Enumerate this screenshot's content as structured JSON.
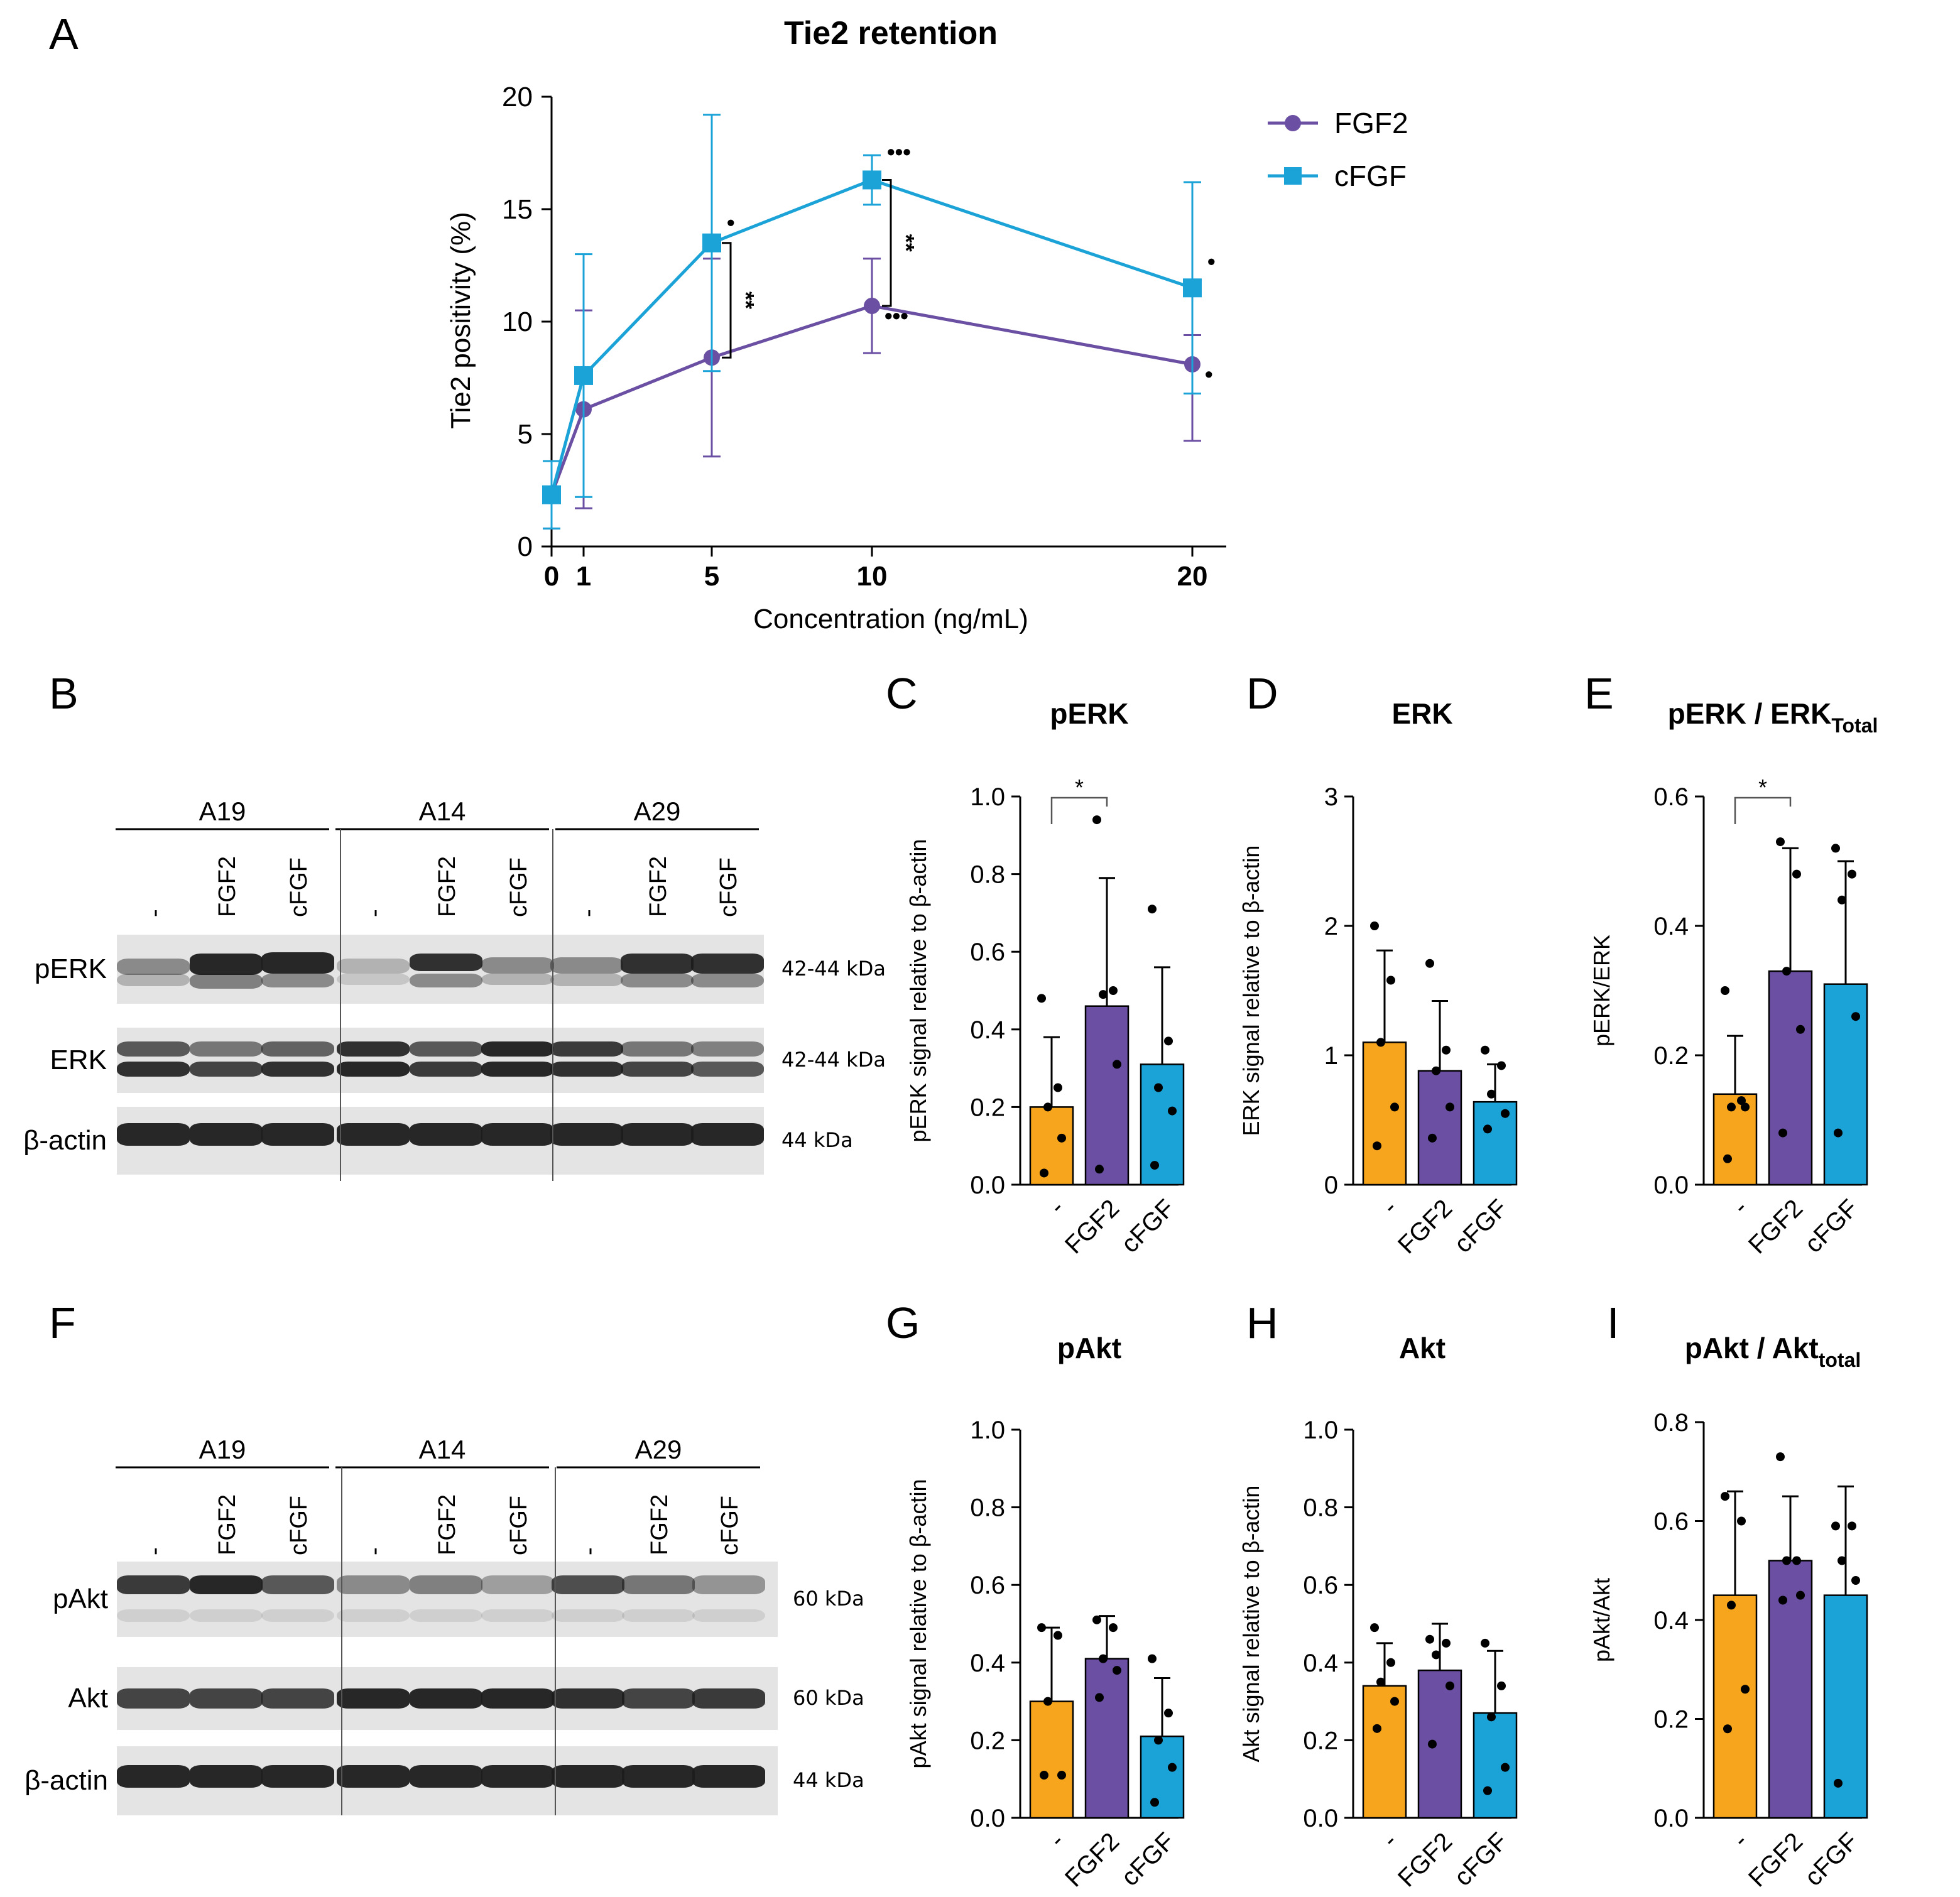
{
  "panel_letters": {
    "A": "A",
    "B": "B",
    "C": "C",
    "D": "D",
    "E": "E",
    "F": "F",
    "G": "G",
    "H": "H",
    "I": "I"
  },
  "colors": {
    "fgf2": "#6a4fa3",
    "cfgf": "#1ba3d8",
    "control": "#f7a51c",
    "blot_bg": "#dcdcdc",
    "band": "#1a1a1a"
  },
  "chart_data": [
    {
      "id": "A",
      "type": "line",
      "title": "Tie2 retention",
      "xlabel": "Concentration (ng/mL)",
      "ylabel": "Tie2 positivity (%)",
      "x": [
        0,
        1,
        5,
        10,
        20
      ],
      "xticks": [
        "0",
        "1",
        "5",
        "10",
        "20"
      ],
      "ylim": [
        0,
        20
      ],
      "yticks": [
        "0",
        "5",
        "10",
        "15",
        "20"
      ],
      "series": [
        {
          "name": "FGF2",
          "values": [
            2.3,
            6.1,
            8.4,
            10.7,
            8.1
          ],
          "err_hi": [
            1.5,
            4.4,
            4.4,
            2.1,
            1.3
          ],
          "err_lo": [
            1.5,
            4.4,
            4.4,
            2.1,
            3.4
          ]
        },
        {
          "name": "cFGF",
          "values": [
            2.3,
            7.6,
            13.5,
            16.3,
            11.5
          ],
          "err_hi": [
            1.5,
            5.4,
            5.7,
            1.1,
            4.7
          ],
          "err_lo": [
            1.5,
            5.4,
            5.7,
            1.1,
            4.7
          ]
        }
      ],
      "annotations": {
        "fgf2_marks": [
          "",
          "",
          "",
          "•••",
          "•"
        ],
        "cfgf_marks": [
          "",
          "",
          "•",
          "•••",
          "•"
        ],
        "brackets": [
          "**",
          "**"
        ]
      }
    },
    {
      "id": "C",
      "type": "bar",
      "title": "pERK",
      "ylabel": "pERK signal relative to β-actin",
      "categories": [
        "-",
        "FGF2",
        "cFGF"
      ],
      "values": [
        0.2,
        0.46,
        0.31
      ],
      "err": [
        0.18,
        0.33,
        0.25
      ],
      "points": [
        [
          0.48,
          0.25,
          0.2,
          0.12,
          0.03
        ],
        [
          0.94,
          0.5,
          0.49,
          0.31,
          0.04
        ],
        [
          0.71,
          0.37,
          0.25,
          0.19,
          0.05
        ]
      ],
      "ylim": [
        0,
        1.0
      ],
      "yticks": [
        "0.0",
        "0.2",
        "0.4",
        "0.6",
        "0.8",
        "1.0"
      ],
      "sig_label": "*",
      "sig_pair": [
        0,
        1
      ]
    },
    {
      "id": "D",
      "type": "bar",
      "title": "ERK",
      "ylabel": "ERK signal relative to β-actin",
      "categories": [
        "-",
        "FGF2",
        "cFGF"
      ],
      "values": [
        1.1,
        0.88,
        0.64
      ],
      "err": [
        0.71,
        0.54,
        0.29
      ],
      "points": [
        [
          2.0,
          1.58,
          1.1,
          0.6,
          0.3
        ],
        [
          1.71,
          1.04,
          0.88,
          0.6,
          0.36
        ],
        [
          1.04,
          0.92,
          0.7,
          0.55,
          0.43
        ]
      ],
      "ylim": [
        0,
        3
      ],
      "yticks": [
        "0",
        "1",
        "2",
        "3"
      ]
    },
    {
      "id": "E",
      "type": "bar",
      "title": "pERK / ERK",
      "title_sub": "Total",
      "ylabel": "pERK/ERK",
      "categories": [
        "-",
        "FGF2",
        "cFGF"
      ],
      "values": [
        0.14,
        0.33,
        0.31
      ],
      "err": [
        0.09,
        0.19,
        0.19
      ],
      "points": [
        [
          0.3,
          0.13,
          0.12,
          0.12,
          0.04
        ],
        [
          0.53,
          0.48,
          0.33,
          0.24,
          0.08
        ],
        [
          0.52,
          0.48,
          0.44,
          0.26,
          0.08
        ]
      ],
      "ylim": [
        0,
        0.6
      ],
      "yticks": [
        "0.0",
        "0.2",
        "0.4",
        "0.6"
      ],
      "sig_label": "*",
      "sig_pair": [
        0,
        1
      ]
    },
    {
      "id": "G",
      "type": "bar",
      "title": "pAkt",
      "ylabel": "pAkt signal relative to β-actin",
      "categories": [
        "-",
        "FGF2",
        "cFGF"
      ],
      "values": [
        0.3,
        0.41,
        0.21
      ],
      "err": [
        0.19,
        0.11,
        0.15
      ],
      "points": [
        [
          0.49,
          0.47,
          0.3,
          0.11,
          0.11
        ],
        [
          0.51,
          0.49,
          0.41,
          0.38,
          0.31
        ],
        [
          0.41,
          0.27,
          0.2,
          0.13,
          0.04
        ]
      ],
      "ylim": [
        0,
        1.0
      ],
      "yticks": [
        "0.0",
        "0.2",
        "0.4",
        "0.6",
        "0.8",
        "1.0"
      ]
    },
    {
      "id": "H",
      "type": "bar",
      "title": "Akt",
      "ylabel": "Akt signal relative to β-actin",
      "categories": [
        "-",
        "FGF2",
        "cFGF"
      ],
      "values": [
        0.34,
        0.38,
        0.27
      ],
      "err": [
        0.11,
        0.12,
        0.16
      ],
      "points": [
        [
          0.49,
          0.4,
          0.35,
          0.3,
          0.23
        ],
        [
          0.46,
          0.45,
          0.42,
          0.34,
          0.19
        ],
        [
          0.45,
          0.34,
          0.26,
          0.13,
          0.07
        ]
      ],
      "ylim": [
        0,
        1.0
      ],
      "yticks": [
        "0.0",
        "0.2",
        "0.4",
        "0.6",
        "0.8",
        "1.0"
      ]
    },
    {
      "id": "I",
      "type": "bar",
      "title": "pAkt / Akt",
      "title_sub": "total",
      "ylabel": "pAkt/Akt",
      "categories": [
        "-",
        "FGF2",
        "cFGF"
      ],
      "values": [
        0.45,
        0.52,
        0.45
      ],
      "err": [
        0.21,
        0.13,
        0.22
      ],
      "points": [
        [
          0.65,
          0.6,
          0.43,
          0.26,
          0.18
        ],
        [
          0.73,
          0.52,
          0.52,
          0.45,
          0.44
        ],
        [
          0.59,
          0.59,
          0.52,
          0.48,
          0.07
        ]
      ],
      "ylim": [
        0,
        0.8
      ],
      "yticks": [
        "0.0",
        "0.2",
        "0.4",
        "0.6",
        "0.8"
      ]
    }
  ],
  "legend": {
    "fgf2": "FGF2",
    "cfgf": "cFGF"
  },
  "blots": {
    "B": {
      "groups": [
        "A19",
        "A14",
        "A29"
      ],
      "lanes": [
        "-",
        "FGF2",
        "cFGF",
        "-",
        "FGF2",
        "cFGF",
        "-",
        "FGF2",
        "cFGF"
      ],
      "rows": [
        {
          "name": "pERK",
          "size": "42-44 kDa"
        },
        {
          "name": "ERK",
          "size": "42-44 kDa"
        },
        {
          "name": "β-actin",
          "size": "44 kDa"
        }
      ]
    },
    "F": {
      "groups": [
        "A19",
        "A14",
        "A29"
      ],
      "lanes": [
        "-",
        "FGF2",
        "cFGF",
        "-",
        "FGF2",
        "cFGF",
        "-",
        "FGF2",
        "cFGF"
      ],
      "rows": [
        {
          "name": "pAkt",
          "size": "60 kDa"
        },
        {
          "name": "Akt",
          "size": "60 kDa"
        },
        {
          "name": "β-actin",
          "size": "44 kDa"
        }
      ]
    }
  }
}
